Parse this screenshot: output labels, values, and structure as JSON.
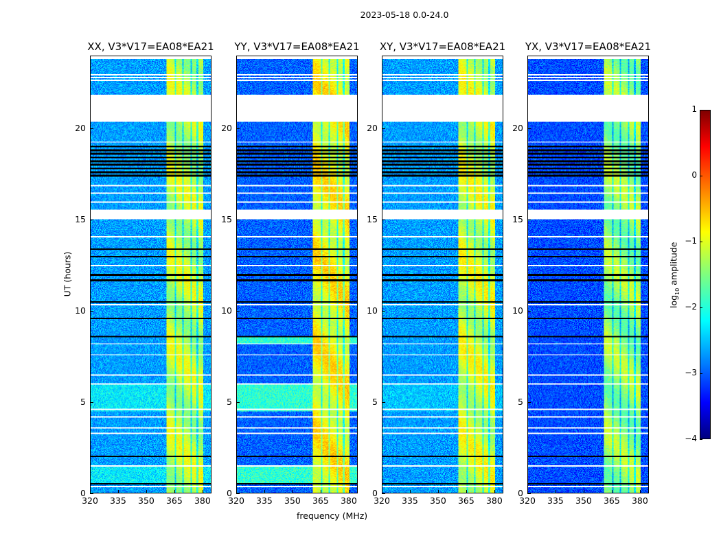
{
  "chart_data": {
    "type": "heatmap",
    "title": "2023-05-18 0.0-24.0",
    "xlabel": "frequency (MHz)",
    "ylabel": "UT (hours)",
    "xlim": [
      320,
      384.8
    ],
    "ylim": [
      0,
      24
    ],
    "xticks": [
      "320",
      "335",
      "350",
      "365",
      "380"
    ],
    "xtick_values": [
      320,
      335,
      350,
      365,
      380
    ],
    "yticks": [
      "0",
      "5",
      "10",
      "15",
      "20"
    ],
    "ytick_values": [
      0,
      5,
      10,
      15,
      20
    ],
    "colorbar": {
      "label": "log10 amplitude",
      "label_main": "log",
      "label_sub": "10",
      "label_rest": " amplitude",
      "colormap": "jet",
      "vmin": -4,
      "vmax": 1,
      "ticks": [
        "1",
        "0",
        "−1",
        "−2",
        "−3",
        "−4"
      ],
      "tick_values": [
        1,
        0,
        -1,
        -2,
        -3,
        -4
      ]
    },
    "structure": {
      "blank_hours": [
        [
          20.4,
          21.9
        ],
        [
          15.05,
          15.6
        ],
        [
          23.85,
          24.0
        ]
      ],
      "flagged_band_hours": [
        17.4,
        19.1
      ],
      "flagged_line_hours": [
        13.4,
        13.0,
        12.0,
        11.7,
        10.5,
        9.6,
        8.6,
        2.0,
        0.5
      ],
      "gap_line_hours": [
        23.0,
        22.85,
        22.7,
        19.3,
        16.9,
        16.5,
        16.0,
        14.1,
        12.5,
        10.35,
        8.2,
        7.6,
        6.5,
        6.0,
        4.6,
        4.2,
        3.6,
        3.3,
        1.5,
        0.35
      ],
      "bright_band_mhz": [
        361,
        380.5
      ],
      "dark_channel_mhz": [
        365.5,
        369.5,
        374,
        377.5
      ]
    },
    "panels": [
      {
        "title": "XX, V3*V17=EA08*EA21",
        "background_level": -2.6,
        "band_level": -1.2,
        "raised_hours": [
          [
            4.5,
            6.0
          ],
          [
            0.5,
            1.5
          ]
        ],
        "raised_level": -2.2
      },
      {
        "title": "YY, V3*V17=EA08*EA21",
        "background_level": -2.9,
        "band_level": -0.9,
        "raised_hours": [
          [
            4.5,
            6.0
          ],
          [
            0.5,
            1.5
          ],
          [
            8.2,
            8.6
          ]
        ],
        "raised_level": -1.9
      },
      {
        "title": "XY, V3*V17=EA08*EA21",
        "background_level": -2.6,
        "band_level": -1.1,
        "raised_hours": [
          [
            4.5,
            6.0
          ]
        ],
        "raised_level": -2.4
      },
      {
        "title": "YX, V3*V17=EA08*EA21",
        "background_level": -3.0,
        "band_level": -1.4,
        "raised_hours": [],
        "raised_level": -2.6
      }
    ]
  }
}
